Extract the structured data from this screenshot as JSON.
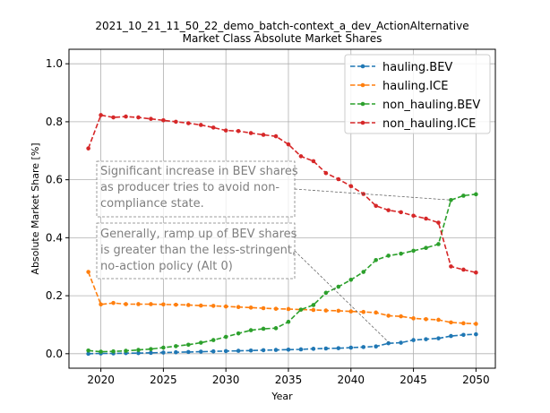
{
  "chart_data": {
    "type": "line",
    "title": "2021_10_21_11_50_22_demo_batch-context_a_dev_ActionAlternative",
    "subtitle": "Market Class Absolute Market Shares",
    "xlabel": "Year",
    "ylabel": "Absolute Market Share [%]",
    "xlim": [
      2017.45,
      2051.55
    ],
    "ylim": [
      -0.05,
      1.05
    ],
    "xticks": [
      2020,
      2025,
      2030,
      2035,
      2040,
      2045,
      2050
    ],
    "yticks": [
      0.0,
      0.2,
      0.4,
      0.6,
      0.8,
      1.0
    ],
    "xtick_labels": [
      "2020",
      "2025",
      "2030",
      "2035",
      "2040",
      "2045",
      "2050"
    ],
    "ytick_labels": [
      "0.0",
      "0.2",
      "0.4",
      "0.6",
      "0.8",
      "1.0"
    ],
    "grid": true,
    "legend_position": "top-right",
    "x": [
      2019,
      2020,
      2021,
      2022,
      2023,
      2024,
      2025,
      2026,
      2027,
      2028,
      2029,
      2030,
      2031,
      2032,
      2033,
      2034,
      2035,
      2036,
      2037,
      2038,
      2039,
      2040,
      2041,
      2042,
      2043,
      2044,
      2045,
      2046,
      2047,
      2048,
      2049,
      2050
    ],
    "series": [
      {
        "name": "hauling.BEV",
        "color": "#1f77b4",
        "values": [
          0.0,
          0.001,
          0.001,
          0.002,
          0.002,
          0.003,
          0.004,
          0.005,
          0.006,
          0.007,
          0.008,
          0.009,
          0.01,
          0.011,
          0.012,
          0.013,
          0.014,
          0.015,
          0.017,
          0.018,
          0.019,
          0.021,
          0.023,
          0.025,
          0.036,
          0.038,
          0.047,
          0.05,
          0.053,
          0.061,
          0.065,
          0.067
        ]
      },
      {
        "name": "hauling.ICE",
        "color": "#ff7f0e",
        "values": [
          0.282,
          0.17,
          0.175,
          0.171,
          0.171,
          0.171,
          0.17,
          0.169,
          0.168,
          0.166,
          0.165,
          0.163,
          0.161,
          0.159,
          0.157,
          0.155,
          0.154,
          0.152,
          0.151,
          0.149,
          0.148,
          0.146,
          0.144,
          0.142,
          0.131,
          0.129,
          0.122,
          0.119,
          0.117,
          0.108,
          0.105,
          0.103
        ]
      },
      {
        "name": "non_hauling.BEV",
        "color": "#2ca02c",
        "values": [
          0.011,
          0.007,
          0.008,
          0.01,
          0.013,
          0.016,
          0.021,
          0.026,
          0.031,
          0.038,
          0.047,
          0.058,
          0.07,
          0.081,
          0.086,
          0.088,
          0.11,
          0.152,
          0.168,
          0.21,
          0.231,
          0.255,
          0.282,
          0.323,
          0.338,
          0.345,
          0.355,
          0.365,
          0.378,
          0.53,
          0.545,
          0.55
        ]
      },
      {
        "name": "non_hauling.ICE",
        "color": "#d62728",
        "values": [
          0.708,
          0.823,
          0.815,
          0.818,
          0.815,
          0.81,
          0.805,
          0.8,
          0.795,
          0.789,
          0.78,
          0.77,
          0.768,
          0.761,
          0.755,
          0.75,
          0.722,
          0.681,
          0.664,
          0.623,
          0.602,
          0.578,
          0.551,
          0.51,
          0.495,
          0.488,
          0.476,
          0.466,
          0.452,
          0.301,
          0.29,
          0.28
        ]
      }
    ],
    "annotations": [
      {
        "lines": [
          "Significant increase in BEV shares",
          "as producer tries to avoid non-",
          "compliance state."
        ],
        "target": [
          2048,
          0.53
        ]
      },
      {
        "lines": [
          "Generally, ramp up of BEV shares",
          "is greater than the less-stringent,",
          "no-action policy (Alt 0)"
        ],
        "target": [
          2043,
          0.04
        ]
      }
    ]
  }
}
